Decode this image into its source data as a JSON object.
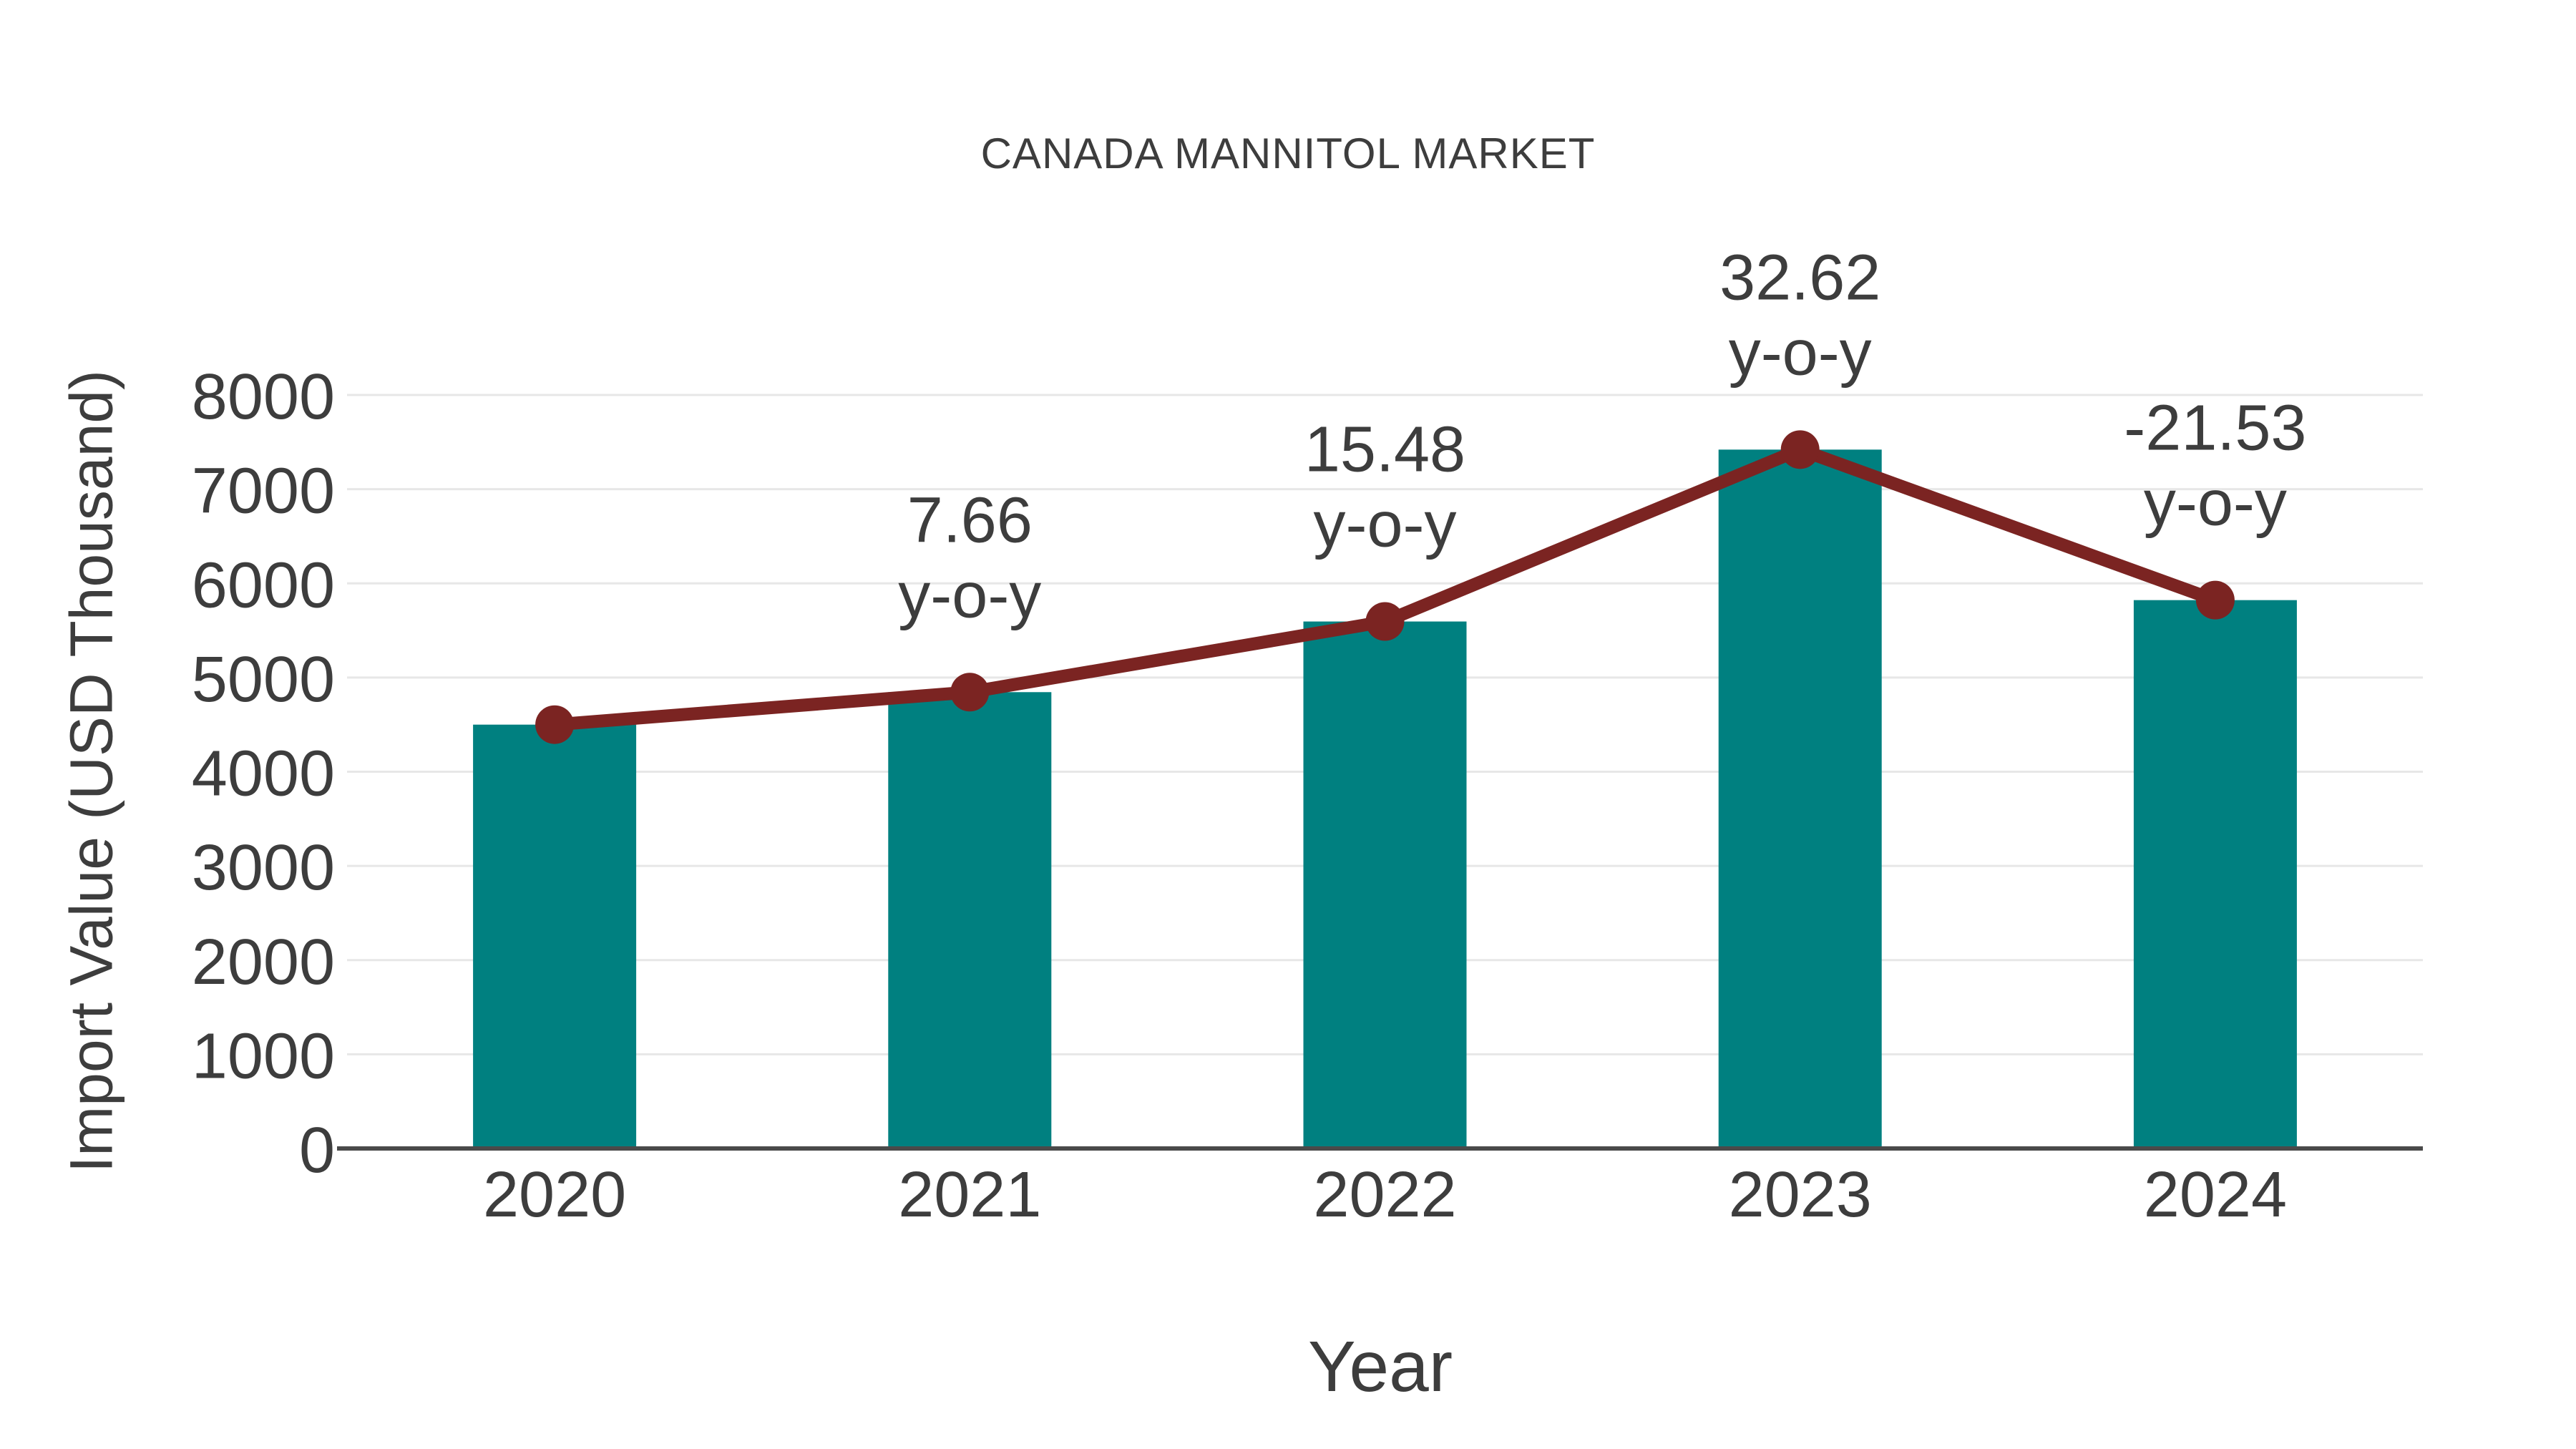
{
  "chart_data": {
    "type": "bar",
    "title": "CANADA MANNITOL MARKET",
    "xlabel": "Year",
    "ylabel": "Import Value (USD Thousand)",
    "categories": [
      "2020",
      "2021",
      "2022",
      "2023",
      "2024"
    ],
    "series": [
      {
        "name": "Import Value (USD Thousand)",
        "type": "bar",
        "values": [
          4500,
          4845,
          5595,
          7420,
          5822
        ],
        "color": "#008080"
      },
      {
        "name": "y-o-y",
        "type": "line",
        "values": [
          4500,
          4845,
          5595,
          7420,
          5822
        ],
        "color": "#7b2422",
        "marker_color": "#7b2422"
      }
    ],
    "annotations": [
      {
        "category": "2021",
        "value": "7.66",
        "suffix": "y-o-y"
      },
      {
        "category": "2022",
        "value": "15.48",
        "suffix": "y-o-y"
      },
      {
        "category": "2023",
        "value": "32.62",
        "suffix": "y-o-y"
      },
      {
        "category": "2024",
        "value": "-21.53",
        "suffix": "y-o-y"
      }
    ],
    "ylim": [
      0,
      8000
    ],
    "yticks": [
      0,
      1000,
      2000,
      3000,
      4000,
      5000,
      6000,
      7000,
      8000
    ],
    "grid": true,
    "legend": false,
    "colors": {
      "bar": "#008080",
      "line": "#7b2422",
      "text": "#3d3d3d",
      "gridline": "#e7e7e7",
      "axis_line": "#4a4a4a",
      "background": "#ffffff"
    }
  }
}
